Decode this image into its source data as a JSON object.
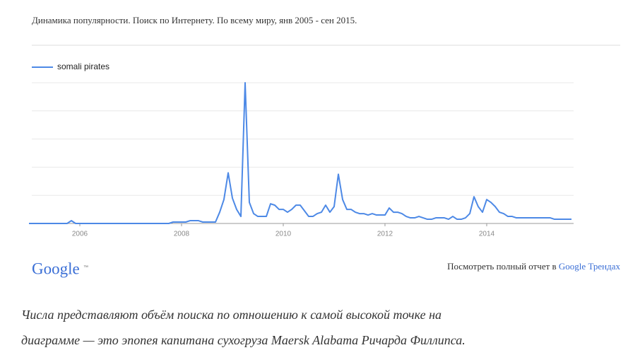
{
  "header": "Динамика популярности. Поиск по Интернету. По всему миру, янв 2005 - сен 2015.",
  "chart_data": {
    "type": "line",
    "x": [
      2005,
      2005.083,
      2005.167,
      2005.25,
      2005.333,
      2005.417,
      2005.5,
      2005.583,
      2005.667,
      2005.75,
      2005.833,
      2005.917,
      2006,
      2006.083,
      2006.167,
      2006.25,
      2006.333,
      2006.417,
      2006.5,
      2006.583,
      2006.667,
      2006.75,
      2006.833,
      2006.917,
      2007,
      2007.083,
      2007.167,
      2007.25,
      2007.333,
      2007.417,
      2007.5,
      2007.583,
      2007.667,
      2007.75,
      2007.833,
      2007.917,
      2008,
      2008.083,
      2008.167,
      2008.25,
      2008.333,
      2008.417,
      2008.5,
      2008.583,
      2008.667,
      2008.75,
      2008.833,
      2008.917,
      2009,
      2009.083,
      2009.167,
      2009.25,
      2009.333,
      2009.417,
      2009.5,
      2009.583,
      2009.667,
      2009.75,
      2009.833,
      2009.917,
      2010,
      2010.083,
      2010.167,
      2010.25,
      2010.333,
      2010.417,
      2010.5,
      2010.583,
      2010.667,
      2010.75,
      2010.833,
      2010.917,
      2011,
      2011.083,
      2011.167,
      2011.25,
      2011.333,
      2011.417,
      2011.5,
      2011.583,
      2011.667,
      2011.75,
      2011.833,
      2011.917,
      2012,
      2012.083,
      2012.167,
      2012.25,
      2012.333,
      2012.417,
      2012.5,
      2012.583,
      2012.667,
      2012.75,
      2012.833,
      2012.917,
      2013,
      2013.083,
      2013.167,
      2013.25,
      2013.333,
      2013.417,
      2013.5,
      2013.583,
      2013.667,
      2013.75,
      2013.833,
      2013.917,
      2014,
      2014.083,
      2014.167,
      2014.25,
      2014.333,
      2014.417,
      2014.5,
      2014.583,
      2014.667,
      2014.75,
      2014.833,
      2014.917,
      2015,
      2015.083,
      2015.167,
      2015.25,
      2015.333,
      2015.417,
      2015.5,
      2015.583,
      2015.667
    ],
    "series": [
      {
        "name": "somali pirates",
        "color": "#4d89e6",
        "values": [
          0,
          0,
          0,
          0,
          0,
          0,
          0,
          0,
          0,
          0,
          2,
          0,
          0,
          0,
          0,
          0,
          0,
          0,
          0,
          0,
          0,
          0,
          0,
          0,
          0,
          0,
          0,
          0,
          0,
          0,
          0,
          0,
          0,
          0,
          1,
          1,
          1,
          1,
          2,
          2,
          2,
          1,
          1,
          1,
          1,
          8,
          17,
          36,
          18,
          10,
          5,
          100,
          15,
          7,
          5,
          5,
          5,
          14,
          13,
          10,
          10,
          8,
          10,
          13,
          13,
          9,
          5,
          5,
          7,
          8,
          13,
          8,
          12,
          35,
          17,
          10,
          10,
          8,
          7,
          7,
          6,
          7,
          6,
          6,
          6,
          11,
          8,
          8,
          7,
          5,
          4,
          4,
          5,
          4,
          3,
          3,
          4,
          4,
          4,
          3,
          5,
          3,
          3,
          4,
          7,
          19,
          12,
          8,
          17,
          15,
          12,
          8,
          7,
          5,
          5,
          4,
          4,
          4,
          4,
          4,
          4,
          4,
          4,
          4,
          3,
          3,
          3,
          3,
          3
        ]
      }
    ],
    "xlim": [
      2005,
      2015.667
    ],
    "xticks": [
      2006,
      2008,
      2010,
      2012,
      2014
    ],
    "ylim": [
      0,
      100
    ],
    "yticks": [
      0,
      20,
      40,
      60,
      80,
      100
    ],
    "grid": true,
    "legend": "top-left"
  },
  "footer": {
    "logo": "Google",
    "logo_mark": "™",
    "report_text": "Посмотреть полный отчет в ",
    "report_link": "Google Трендах"
  },
  "caption": [
    "Числа представляют объём поиска по отношению к самой высокой точке на",
    "диаграмме — это эпопея капитана сухогруза Maersk Alabama Ричарда Филлипса."
  ]
}
